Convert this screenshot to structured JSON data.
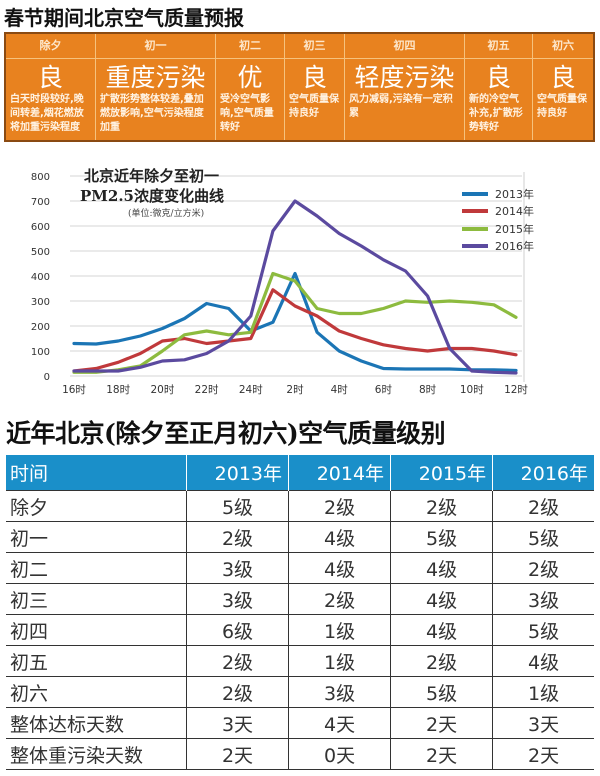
{
  "header": {
    "title": "春节期间北京空气质量预报"
  },
  "forecast": [
    {
      "day": "除夕",
      "level": "良",
      "desc": "白天时段较好,晚间转差,烟花燃放将加重污染程度"
    },
    {
      "day": "初一",
      "level": "重度污染",
      "desc": "扩散形势整体较差,叠加燃放影响,空气污染程度加重"
    },
    {
      "day": "初二",
      "level": "优",
      "desc": "受冷空气影响,空气质量转好"
    },
    {
      "day": "初三",
      "level": "良",
      "desc": "空气质量保持良好"
    },
    {
      "day": "初四",
      "level": "轻度污染",
      "desc": "风力减弱,污染有一定积累"
    },
    {
      "day": "初五",
      "level": "良",
      "desc": "新的冷空气补充,扩散形势转好"
    },
    {
      "day": "初六",
      "level": "良",
      "desc": "空气质量保持良好"
    }
  ],
  "chart_data": {
    "type": "line",
    "title": "北京近年除夕至初一",
    "subtitle": "PM2.5浓度变化曲线",
    "unit_note": "(单位:微克/立方米)",
    "xlabel": "",
    "ylabel": "",
    "x": [
      "16时",
      "17时",
      "18时",
      "19时",
      "20时",
      "21时",
      "22时",
      "23时",
      "24时",
      "1时",
      "2时",
      "3时",
      "4时",
      "5时",
      "6时",
      "7时",
      "8时",
      "9时",
      "10时",
      "11时",
      "12时"
    ],
    "xticks": [
      "16时",
      "18时",
      "20时",
      "22时",
      "24时",
      "2时",
      "4时",
      "6时",
      "8时",
      "10时",
      "12时"
    ],
    "yticks": [
      0,
      100,
      200,
      300,
      400,
      500,
      600,
      700,
      800
    ],
    "ylim": [
      0,
      800
    ],
    "grid": true,
    "legend": "top-right",
    "series": [
      {
        "name": "2013年",
        "color": "#1b75b5",
        "values": [
          130,
          128,
          140,
          160,
          190,
          230,
          290,
          270,
          180,
          215,
          410,
          175,
          100,
          60,
          30,
          28,
          28,
          28,
          25,
          25,
          22
        ]
      },
      {
        "name": "2014年",
        "color": "#c0393b",
        "values": [
          20,
          30,
          55,
          90,
          140,
          150,
          130,
          140,
          150,
          345,
          280,
          240,
          180,
          150,
          125,
          110,
          100,
          110,
          110,
          100,
          85
        ]
      },
      {
        "name": "2015年",
        "color": "#8dbb3f",
        "values": [
          15,
          15,
          25,
          40,
          100,
          165,
          180,
          165,
          175,
          410,
          380,
          270,
          250,
          250,
          270,
          300,
          295,
          300,
          295,
          285,
          235
        ]
      },
      {
        "name": "2016年",
        "color": "#5b4a9f",
        "values": [
          20,
          20,
          20,
          35,
          60,
          65,
          90,
          140,
          240,
          580,
          700,
          640,
          570,
          520,
          465,
          420,
          320,
          110,
          20,
          15,
          12
        ]
      }
    ]
  },
  "table": {
    "title": "近年北京(除夕至正月初六)空气质量级别",
    "headers": [
      "时间",
      "2013年",
      "2014年",
      "2015年",
      "2016年"
    ],
    "rows": [
      [
        "除夕",
        "5级",
        "2级",
        "2级",
        "2级"
      ],
      [
        "初一",
        "2级",
        "4级",
        "5级",
        "5级"
      ],
      [
        "初二",
        "3级",
        "4级",
        "4级",
        "2级"
      ],
      [
        "初三",
        "3级",
        "2级",
        "4级",
        "3级"
      ],
      [
        "初四",
        "6级",
        "1级",
        "4级",
        "5级"
      ],
      [
        "初五",
        "2级",
        "1级",
        "2级",
        "4级"
      ],
      [
        "初六",
        "2级",
        "3级",
        "5级",
        "1级"
      ],
      [
        "整体达标天数",
        "3天",
        "4天",
        "2天",
        "3天"
      ],
      [
        "整体重污染天数",
        "2天",
        "0天",
        "2天",
        "2天"
      ]
    ]
  }
}
